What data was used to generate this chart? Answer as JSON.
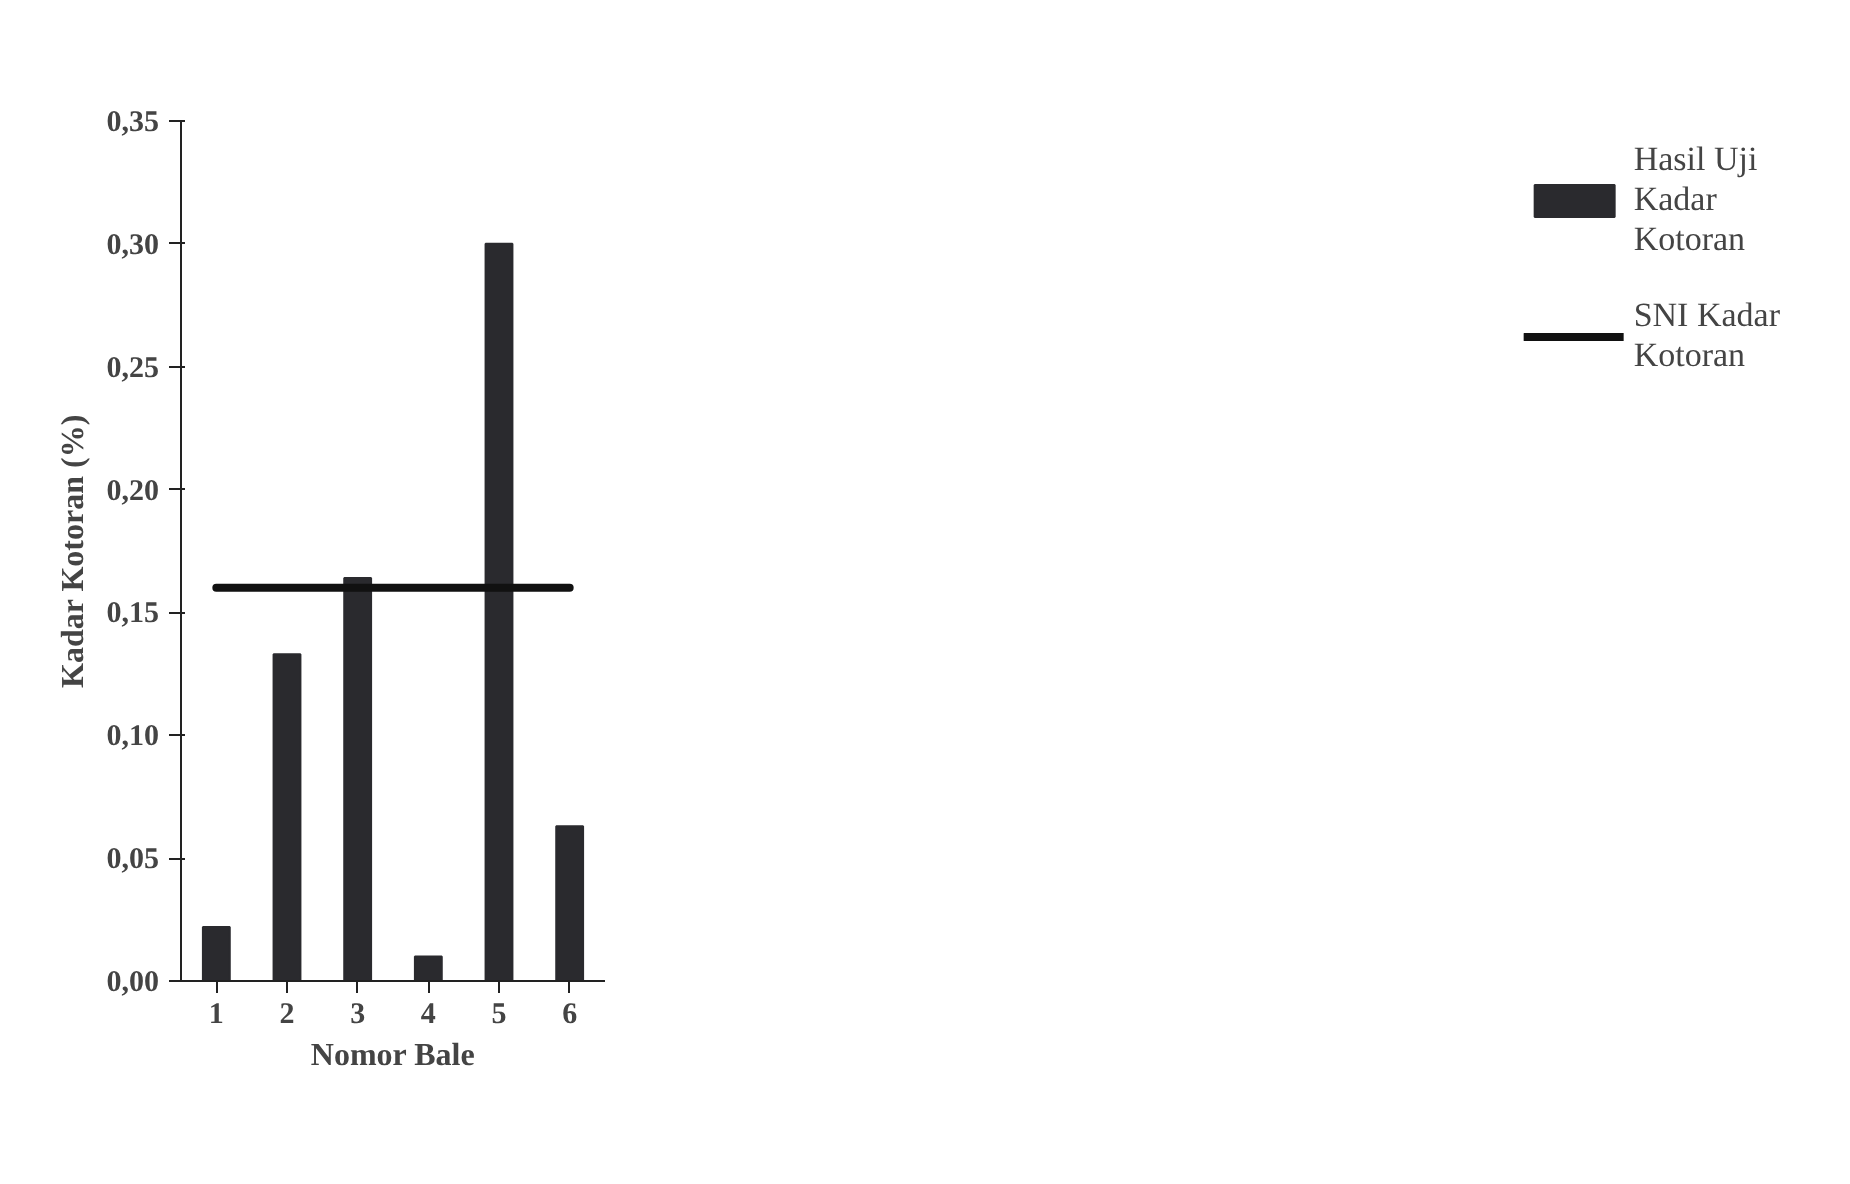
{
  "chart_data": {
    "type": "bar",
    "xlabel": "Nomor Bale",
    "ylabel": "Kadar Kotoran (%)",
    "categories": [
      "1",
      "2",
      "3",
      "4",
      "5",
      "6"
    ],
    "series": [
      {
        "name": "Hasil Uji Kadar Kotoran",
        "color": "#2a2a2e",
        "values": [
          0.022,
          0.133,
          0.164,
          0.01,
          0.3,
          0.063
        ]
      },
      {
        "name": "SNI Kadar Kotoran",
        "type": "line",
        "color": "#111111",
        "values": [
          0.16,
          0.16,
          0.16,
          0.16,
          0.16,
          0.16
        ]
      }
    ],
    "ylim": [
      0,
      0.35
    ],
    "yticks": [
      {
        "value": 0,
        "label": "0,00"
      },
      {
        "value": 0.05,
        "label": "0,05"
      },
      {
        "value": 0.1,
        "label": "0,10"
      },
      {
        "value": 0.15,
        "label": "0,15"
      },
      {
        "value": 0.2,
        "label": "0,20"
      },
      {
        "value": 0.25,
        "label": "0,25"
      },
      {
        "value": 0.3,
        "label": "0,30"
      },
      {
        "value": 0.35,
        "label": "0,35"
      }
    ],
    "grid": false,
    "legend": "right"
  }
}
